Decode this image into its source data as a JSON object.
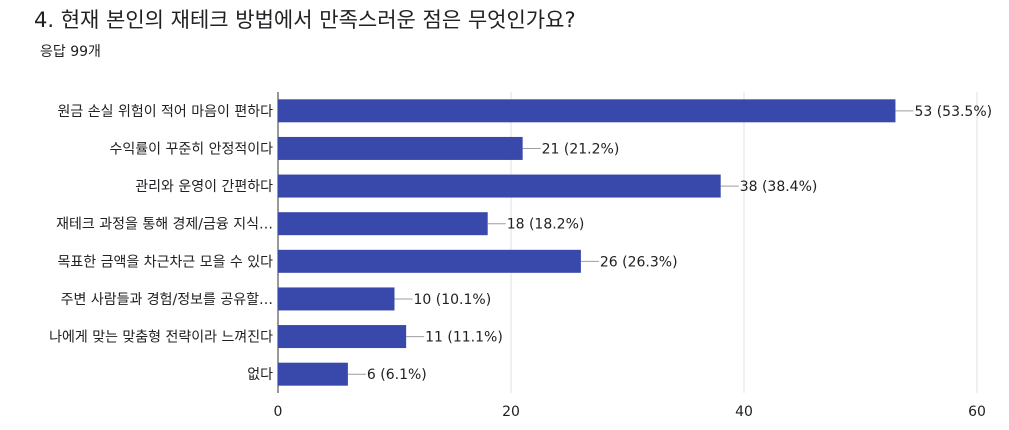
{
  "header": {
    "title": "4. 현재 본인의 재테크 방법에서 만족스러운 점은 무엇인가요?",
    "response_count": "응답 99개"
  },
  "colors": {
    "bar": "#3949ab",
    "grid": "#e0e0e0",
    "axis": "#333333",
    "leader": "#9e9e9e"
  },
  "chart_data": {
    "type": "bar",
    "orientation": "horizontal",
    "categories": [
      "원금 손실 위험이 적어 마음이 편하다",
      "수익률이 꾸준히 안정적이다",
      "관리와 운영이 간편하다",
      "재테크 과정을 통해 경제/금융 지식…",
      "목표한 금액을 차근차근 모을 수 있다",
      "주변 사람들과 경험/정보를 공유할…",
      "나에게 맞는 맞춤형 전략이라 느껴진다",
      "없다"
    ],
    "values": [
      53,
      21,
      38,
      18,
      26,
      10,
      11,
      6
    ],
    "value_labels": [
      "53 (53.5%)",
      "21 (21.2%)",
      "38 (38.4%)",
      "18 (18.2%)",
      "26 (26.3%)",
      "10 (10.1%)",
      "11 (11.1%)",
      "6 (6.1%)"
    ],
    "xlim": [
      0,
      60
    ],
    "xticks": [
      "0",
      "20",
      "40",
      "60"
    ],
    "xtick_values": [
      0,
      20,
      40,
      60
    ],
    "grid": true,
    "legend": "none"
  }
}
